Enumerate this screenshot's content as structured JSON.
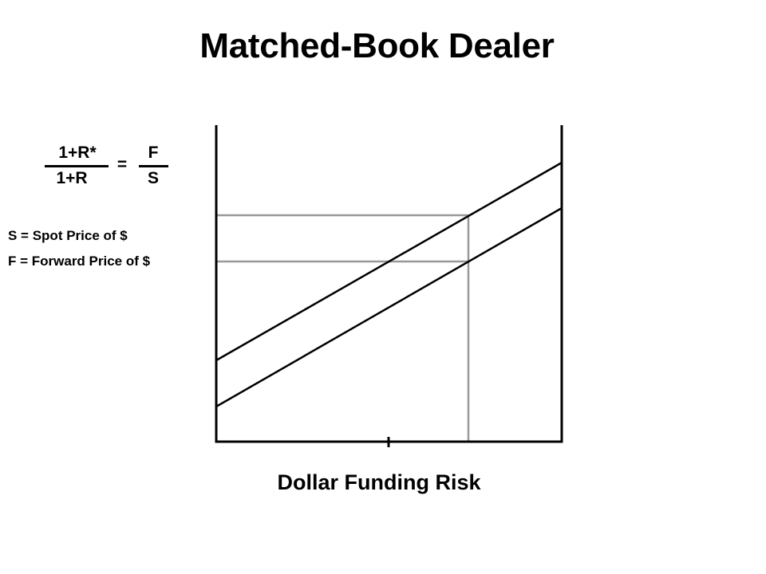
{
  "title": "Matched-Book Dealer",
  "equation": {
    "left_numerator": "1+R*",
    "left_denominator": "1+R",
    "equals": "=",
    "right_numerator": "F",
    "right_denominator": "S"
  },
  "definitions": [
    "S = Spot Price of $",
    "F = Forward Price of $"
  ],
  "diagram": {
    "x_label": "Dollar Funding Risk",
    "line_color": "#000000",
    "guide_color": "#999999"
  }
}
